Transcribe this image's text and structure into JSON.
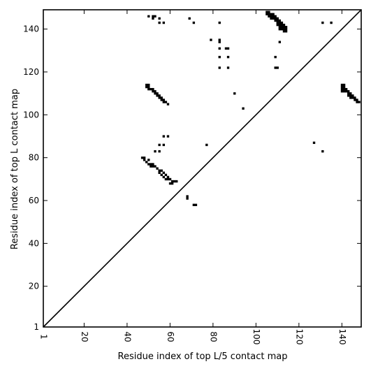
{
  "chart_data": {
    "type": "scatter",
    "title": "",
    "xlabel": "Residue index of top L/5 contact map",
    "ylabel": "Residue index of top L contact map",
    "xlim": [
      1,
      149
    ],
    "ylim": [
      1,
      149
    ],
    "x_ticks": [
      1,
      20,
      40,
      60,
      80,
      100,
      120,
      140
    ],
    "y_ticks": [
      1,
      20,
      40,
      60,
      80,
      100,
      120,
      140
    ],
    "grid": false,
    "legend": "none",
    "marker_color": "#000000",
    "diagonal_line": {
      "from": [
        1,
        1
      ],
      "to": [
        149,
        149
      ]
    },
    "series": [
      {
        "values": [
          [
            49,
            113
          ],
          [
            50,
            113
          ],
          [
            51,
            112
          ],
          [
            52,
            112
          ],
          [
            53,
            111
          ],
          [
            54,
            110
          ],
          [
            55,
            109
          ],
          [
            56,
            108
          ],
          [
            57,
            107
          ],
          [
            58,
            106
          ],
          [
            59,
            105
          ],
          [
            52,
            111
          ],
          [
            53,
            110
          ],
          [
            54,
            109
          ],
          [
            55,
            108
          ],
          [
            56,
            107
          ],
          [
            57,
            106
          ],
          [
            50,
            112
          ],
          [
            49,
            114
          ],
          [
            50,
            114
          ],
          [
            48,
            80
          ],
          [
            47,
            80
          ],
          [
            48,
            79
          ],
          [
            49,
            78
          ],
          [
            50,
            77
          ],
          [
            51,
            77
          ],
          [
            52,
            76
          ],
          [
            53,
            76
          ],
          [
            54,
            75
          ],
          [
            55,
            74
          ],
          [
            56,
            74
          ],
          [
            57,
            73
          ],
          [
            58,
            72
          ],
          [
            59,
            71
          ],
          [
            60,
            70
          ],
          [
            61,
            69
          ],
          [
            62,
            69
          ],
          [
            63,
            69
          ],
          [
            55,
            73
          ],
          [
            56,
            72
          ],
          [
            57,
            71
          ],
          [
            58,
            70
          ],
          [
            59,
            70
          ],
          [
            60,
            68
          ],
          [
            61,
            68
          ],
          [
            50,
            79
          ],
          [
            51,
            76
          ],
          [
            52,
            77
          ],
          [
            53,
            83
          ],
          [
            55,
            83
          ],
          [
            55,
            86
          ],
          [
            57,
            86
          ],
          [
            57,
            90
          ],
          [
            59,
            90
          ],
          [
            68,
            61
          ],
          [
            68,
            62
          ],
          [
            71,
            58
          ],
          [
            72,
            58
          ],
          [
            77,
            86
          ],
          [
            105,
            148
          ],
          [
            106,
            148
          ],
          [
            106,
            147
          ],
          [
            107,
            147
          ],
          [
            107,
            146
          ],
          [
            108,
            146
          ],
          [
            108,
            147
          ],
          [
            109,
            146
          ],
          [
            109,
            145
          ],
          [
            110,
            145
          ],
          [
            110,
            144
          ],
          [
            111,
            144
          ],
          [
            111,
            143
          ],
          [
            112,
            143
          ],
          [
            112,
            142
          ],
          [
            113,
            142
          ],
          [
            113,
            141
          ],
          [
            114,
            141
          ],
          [
            114,
            140
          ],
          [
            114,
            139
          ],
          [
            113,
            140
          ],
          [
            112,
            141
          ],
          [
            111,
            142
          ],
          [
            111,
            141
          ],
          [
            112,
            140
          ],
          [
            113,
            139
          ],
          [
            106,
            146
          ],
          [
            107,
            145
          ],
          [
            108,
            145
          ],
          [
            109,
            144
          ],
          [
            110,
            143
          ],
          [
            111,
            140
          ],
          [
            105,
            147
          ],
          [
            110,
            142
          ],
          [
            50,
            146
          ],
          [
            52,
            146
          ],
          [
            52,
            145
          ],
          [
            53,
            146
          ],
          [
            55,
            145
          ],
          [
            55,
            143
          ],
          [
            57,
            143
          ],
          [
            69,
            145
          ],
          [
            71,
            143
          ],
          [
            79,
            135
          ],
          [
            83,
            135
          ],
          [
            83,
            134
          ],
          [
            83,
            143
          ],
          [
            83,
            131
          ],
          [
            86,
            131
          ],
          [
            87,
            131
          ],
          [
            83,
            127
          ],
          [
            87,
            127
          ],
          [
            83,
            122
          ],
          [
            87,
            122
          ],
          [
            109,
            122
          ],
          [
            110,
            122
          ],
          [
            109,
            127
          ],
          [
            111,
            134
          ],
          [
            90,
            110
          ],
          [
            94,
            103
          ],
          [
            131,
            143
          ],
          [
            135,
            143
          ],
          [
            127,
            87
          ],
          [
            131,
            83
          ],
          [
            140,
            114
          ],
          [
            141,
            114
          ],
          [
            140,
            113
          ],
          [
            141,
            113
          ],
          [
            140,
            112
          ],
          [
            141,
            112
          ],
          [
            142,
            112
          ],
          [
            141,
            111
          ],
          [
            140,
            111
          ],
          [
            142,
            111
          ],
          [
            143,
            111
          ],
          [
            143,
            110
          ],
          [
            144,
            110
          ],
          [
            144,
            109
          ],
          [
            145,
            109
          ],
          [
            145,
            108
          ],
          [
            146,
            108
          ],
          [
            146,
            107
          ],
          [
            147,
            107
          ],
          [
            148,
            106
          ],
          [
            147,
            106
          ],
          [
            143,
            109
          ],
          [
            144,
            108
          ]
        ]
      }
    ]
  }
}
